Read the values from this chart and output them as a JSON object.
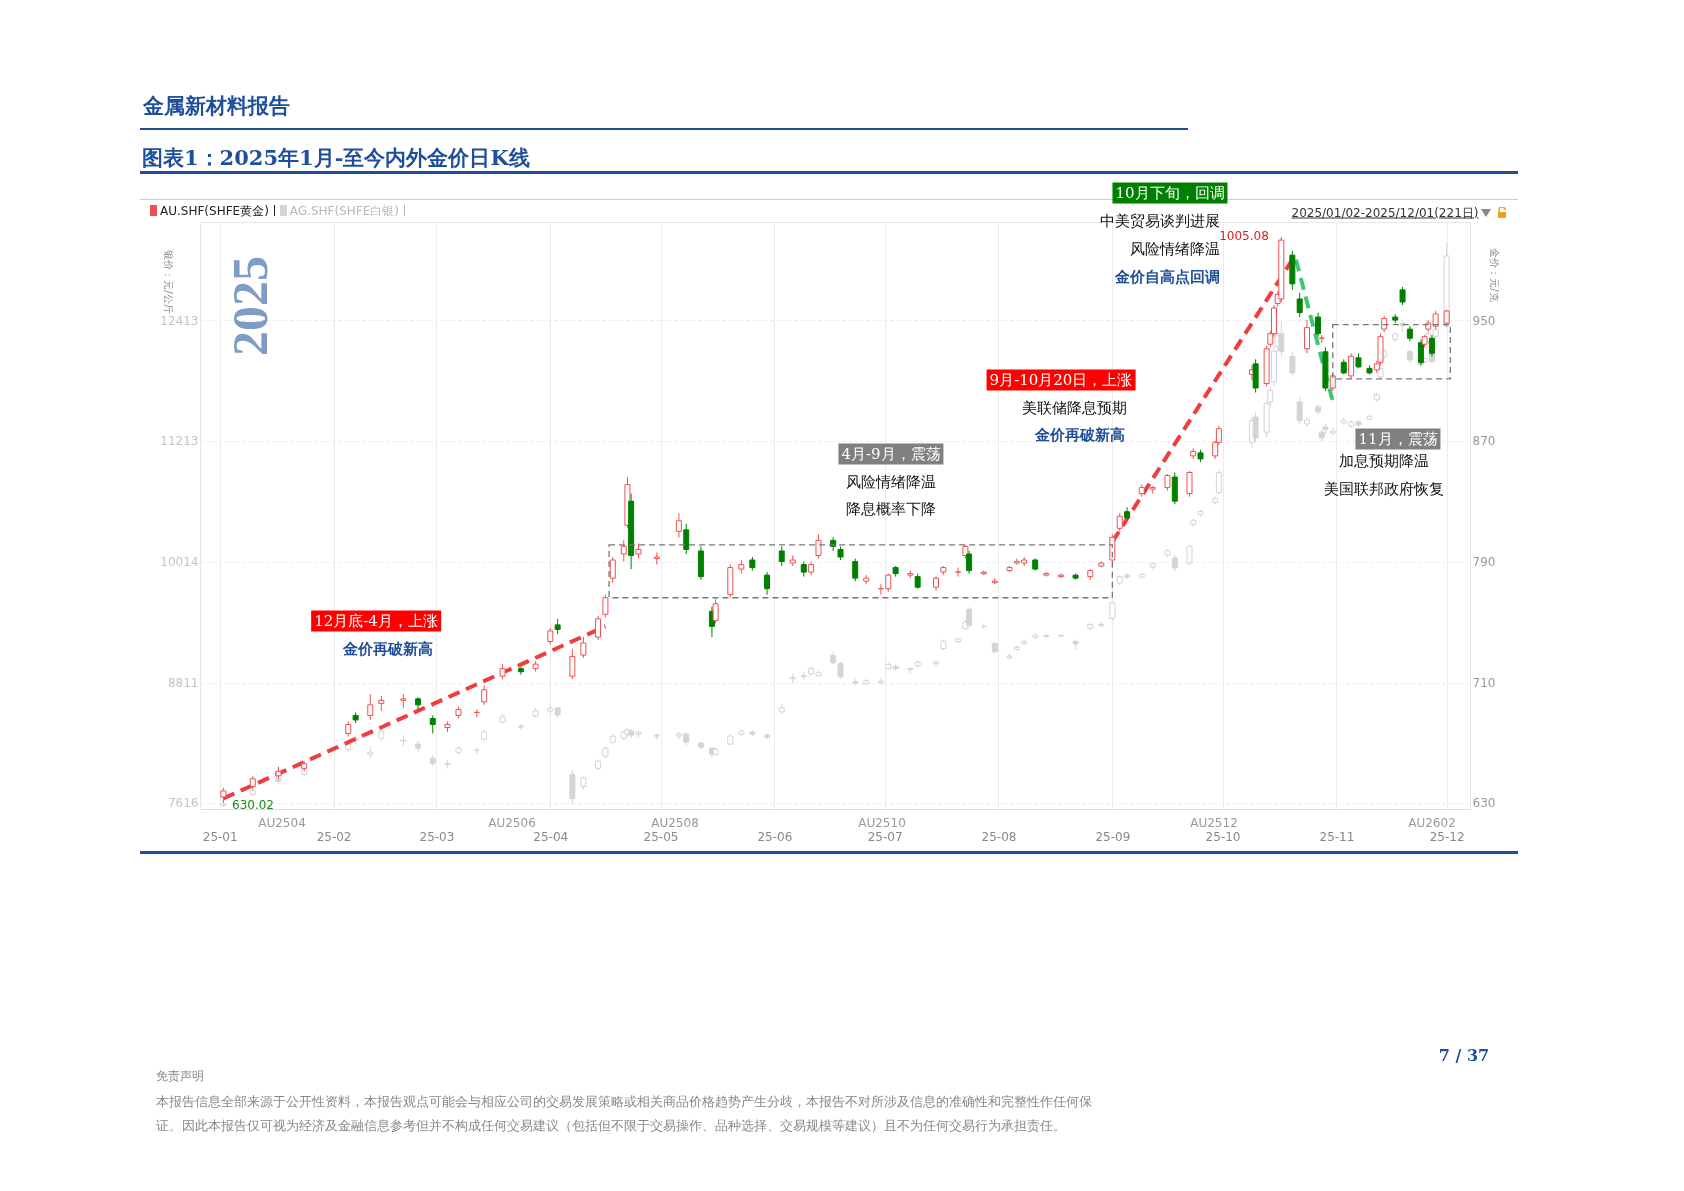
{
  "chart_data": {
    "type": "candlestick",
    "title": "图表1：2025年1月-至今内外金价日K线",
    "ylabel": "银价：元/公斤",
    "y2label": "金价：元/克",
    "x": [
      "2025-01-02",
      "2025-01-10",
      "2025-01-17",
      "2025-01-24",
      "2025-02-05",
      "2025-02-07",
      "2025-02-11",
      "2025-02-14",
      "2025-02-20",
      "2025-02-24",
      "2025-02-28",
      "2025-03-04",
      "2025-03-07",
      "2025-03-12",
      "2025-03-14",
      "2025-03-19",
      "2025-03-24",
      "2025-03-28",
      "2025-04-01",
      "2025-04-03",
      "2025-04-07",
      "2025-04-10",
      "2025-04-14",
      "2025-04-16",
      "2025-04-18",
      "2025-04-21",
      "2025-04-22",
      "2025-04-23",
      "2025-04-25",
      "2025-04-30",
      "2025-05-06",
      "2025-05-08",
      "2025-05-12",
      "2025-05-15",
      "2025-05-16",
      "2025-05-20",
      "2025-05-23",
      "2025-05-26",
      "2025-05-30",
      "2025-06-03",
      "2025-06-06",
      "2025-06-09",
      "2025-06-11",
      "2025-06-13",
      "2025-06-17",
      "2025-06-19",
      "2025-06-23",
      "2025-06-26",
      "2025-06-30",
      "2025-07-02",
      "2025-07-04",
      "2025-07-08",
      "2025-07-10",
      "2025-07-15",
      "2025-07-17",
      "2025-07-21",
      "2025-07-23",
      "2025-07-24",
      "2025-07-28",
      "2025-07-31",
      "2025-08-04",
      "2025-08-06",
      "2025-08-08",
      "2025-08-11",
      "2025-08-14",
      "2025-08-18",
      "2025-08-22",
      "2025-08-26",
      "2025-08-29",
      "2025-09-01",
      "2025-09-03",
      "2025-09-05",
      "2025-09-09",
      "2025-09-12",
      "2025-09-16",
      "2025-09-18",
      "2025-09-22",
      "2025-09-23",
      "2025-09-25",
      "2025-09-29",
      "2025-09-30",
      "2025-10-09",
      "2025-10-10",
      "2025-10-13",
      "2025-10-14",
      "2025-10-15",
      "2025-10-16",
      "2025-10-17",
      "2025-10-20",
      "2025-10-22",
      "2025-10-24",
      "2025-10-27",
      "2025-10-28",
      "2025-10-29",
      "2025-10-31",
      "2025-11-03",
      "2025-11-05",
      "2025-11-07",
      "2025-11-10",
      "2025-11-12",
      "2025-11-13",
      "2025-11-14",
      "2025-11-17",
      "2025-11-19",
      "2025-11-21",
      "2025-11-24",
      "2025-11-25",
      "2025-11-26",
      "2025-11-27",
      "2025-11-28",
      "2025-12-01"
    ],
    "series": [
      {
        "type": "line",
        "x": [
          "2025-01-02",
          "2025-04-16"
        ],
        "values": [
          633,
          747
        ],
        "color": "#f03c3c",
        "line_style": "dashed",
        "axis": "y2"
      },
      {
        "type": "line",
        "x": [
          "2025-09-01",
          "2025-10-20"
        ],
        "values": [
          803,
          990
        ],
        "color": "#f03c3c",
        "line_style": "dashed",
        "axis": "y2"
      },
      {
        "type": "line",
        "x": [
          "2025-10-21",
          "2025-10-31"
        ],
        "values": [
          990,
          896
        ],
        "color": "#3cc878",
        "line_style": "dashed",
        "axis": "y2"
      },
      {
        "name": "AG.SHF(SHFE白银)",
        "color": "#d4d4d4",
        "ohlc": [
          [
            7590,
            7612,
            7580,
            7605
          ],
          [
            7700,
            7760,
            7680,
            7740
          ],
          [
            7860,
            7880,
            7800,
            7830
          ],
          [
            7900,
            7990,
            7880,
            7950
          ],
          [
            8150,
            8230,
            8120,
            8200
          ],
          [
            8260,
            8290,
            8200,
            8240
          ],
          [
            8100,
            8180,
            8060,
            8120
          ],
          [
            8260,
            8360,
            8230,
            8330
          ],
          [
            8230,
            8290,
            8180,
            8240
          ],
          [
            8200,
            8230,
            8120,
            8160
          ],
          [
            8060,
            8090,
            7980,
            8010
          ],
          [
            8000,
            8040,
            7960,
            8010
          ],
          [
            8120,
            8180,
            8100,
            8160
          ],
          [
            8140,
            8170,
            8100,
            8140
          ],
          [
            8250,
            8340,
            8230,
            8320
          ],
          [
            8420,
            8500,
            8400,
            8470
          ],
          [
            8380,
            8400,
            8340,
            8370
          ],
          [
            8480,
            8560,
            8460,
            8530
          ],
          [
            8530,
            8590,
            8500,
            8555
          ],
          [
            8560,
            8570,
            8460,
            8490
          ],
          [
            7900,
            7950,
            7600,
            7660
          ],
          [
            7780,
            7880,
            7750,
            7866
          ],
          [
            7960,
            8050,
            7940,
            8030
          ],
          [
            8080,
            8170,
            8060,
            8160
          ],
          [
            8220,
            8300,
            8200,
            8280
          ],
          [
            8260,
            8330,
            8240,
            8320
          ],
          [
            8300,
            8360,
            8270,
            8340
          ],
          [
            8330,
            8350,
            8260,
            8290
          ],
          [
            8300,
            8330,
            8260,
            8320
          ],
          [
            8290,
            8310,
            8240,
            8280
          ],
          [
            8280,
            8320,
            8250,
            8300
          ],
          [
            8300,
            8320,
            8190,
            8220
          ],
          [
            8210,
            8230,
            8150,
            8170
          ],
          [
            8160,
            8170,
            8060,
            8100
          ],
          [
            8100,
            8170,
            8090,
            8150
          ],
          [
            8200,
            8300,
            8190,
            8280
          ],
          [
            8300,
            8350,
            8280,
            8330
          ],
          [
            8320,
            8340,
            8280,
            8300
          ],
          [
            8290,
            8310,
            8250,
            8270
          ],
          [
            8520,
            8600,
            8500,
            8560
          ],
          [
            8850,
            8900,
            8800,
            8860
          ],
          [
            8880,
            8920,
            8840,
            8870
          ],
          [
            8900,
            8970,
            8880,
            8950
          ],
          [
            8880,
            8930,
            8870,
            8910
          ],
          [
            9080,
            9120,
            8990,
            9010
          ],
          [
            9000,
            9020,
            8850,
            8870
          ],
          [
            8820,
            8850,
            8780,
            8805
          ],
          [
            8800,
            8850,
            8790,
            8830
          ],
          [
            8810,
            8860,
            8790,
            8826
          ],
          [
            8950,
            9010,
            8940,
            8993
          ],
          [
            8970,
            8990,
            8930,
            8950
          ],
          [
            8940,
            8960,
            8900,
            8951
          ],
          [
            8980,
            9030,
            8960,
            9014
          ],
          [
            9000,
            9040,
            8980,
            9020
          ],
          [
            9150,
            9240,
            9130,
            9222
          ],
          [
            9220,
            9260,
            9200,
            9243
          ],
          [
            9350,
            9430,
            9330,
            9410
          ],
          [
            9540,
            9560,
            9360,
            9380
          ],
          [
            9370,
            9400,
            9340,
            9368
          ],
          [
            9200,
            9210,
            9100,
            9118
          ],
          [
            9060,
            9100,
            9040,
            9076
          ],
          [
            9140,
            9180,
            9130,
            9160
          ],
          [
            9200,
            9240,
            9190,
            9218
          ],
          [
            9260,
            9300,
            9250,
            9282
          ],
          [
            9270,
            9290,
            9250,
            9280
          ],
          [
            9280,
            9290,
            9260,
            9275
          ],
          [
            9220,
            9240,
            9140,
            9196
          ],
          [
            9350,
            9400,
            9330,
            9390
          ],
          [
            9380,
            9410,
            9360,
            9390
          ],
          [
            9450,
            9620,
            9430,
            9605
          ],
          [
            9800,
            9880,
            9780,
            9864
          ],
          [
            9880,
            9900,
            9840,
            9860
          ],
          [
            9860,
            9900,
            9840,
            9885
          ],
          [
            9960,
            10010,
            9940,
            9993
          ],
          [
            10080,
            10140,
            10060,
            10122
          ],
          [
            10050,
            10080,
            9920,
            9950
          ],
          [
            10000,
            10180,
            9980,
            10165
          ],
          [
            10380,
            10440,
            10360,
            10424
          ],
          [
            10480,
            10530,
            10460,
            10510
          ],
          [
            10600,
            10660,
            10580,
            10639
          ],
          [
            10700,
            10920,
            10680,
            10897
          ],
          [
            11200,
            11450,
            11150,
            11414
          ],
          [
            11450,
            11500,
            11200,
            11242
          ],
          [
            11300,
            11600,
            11250,
            11586
          ],
          [
            11600,
            11750,
            11550,
            11715
          ],
          [
            11800,
            12150,
            11750,
            12103
          ],
          [
            12150,
            12300,
            12100,
            12275
          ],
          [
            12280,
            12400,
            12050,
            12103
          ],
          [
            12050,
            12100,
            11850,
            11887
          ],
          [
            11600,
            11650,
            11380,
            11414
          ],
          [
            11380,
            11450,
            11350,
            11420
          ],
          [
            11550,
            11580,
            11480,
            11500
          ],
          [
            11300,
            11320,
            11200,
            11242
          ],
          [
            11350,
            11380,
            11280,
            11328
          ],
          [
            11290,
            11340,
            11270,
            11310
          ],
          [
            11390,
            11440,
            11370,
            11414
          ],
          [
            11360,
            11420,
            11340,
            11400
          ],
          [
            11400,
            11420,
            11350,
            11371
          ],
          [
            11430,
            11480,
            11420,
            11457
          ],
          [
            11620,
            11690,
            11600,
            11672
          ],
          [
            11850,
            11950,
            11830,
            11931
          ],
          [
            12050,
            12130,
            12030,
            12103
          ],
          [
            12220,
            12290,
            12200,
            12275
          ],
          [
            12380,
            12400,
            12300,
            12361
          ],
          [
            12100,
            12120,
            11990,
            12017
          ],
          [
            12000,
            12020,
            11950,
            11974
          ],
          [
            12000,
            12050,
            11980,
            12030
          ],
          [
            12200,
            12290,
            12180,
            12275
          ],
          [
            12100,
            12120,
            11980,
            12000
          ],
          [
            12250,
            12330,
            12230,
            12318
          ],
          [
            12350,
            13180,
            12330,
            13050
          ]
        ]
      },
      {
        "name": "AU.SHF(SHFE黄金)",
        "axis": "y2",
        "ohlc": [
          [
            634,
            640,
            630.02,
            638
          ],
          [
            641,
            648,
            639,
            646
          ],
          [
            648,
            654,
            646,
            651
          ],
          [
            653,
            658,
            651,
            656
          ],
          [
            676,
            684,
            674,
            682
          ],
          [
            688,
            690,
            683,
            685
          ],
          [
            688,
            702,
            685,
            695
          ],
          [
            696,
            701,
            691,
            698
          ],
          [
            698,
            702,
            693,
            699
          ],
          [
            699,
            700,
            692,
            695
          ],
          [
            686,
            688,
            676,
            682
          ],
          [
            680,
            684,
            677,
            682
          ],
          [
            688,
            694,
            686,
            692
          ],
          [
            690,
            692,
            687,
            690
          ],
          [
            697,
            708,
            695,
            705
          ],
          [
            714,
            722,
            712,
            719
          ],
          [
            719,
            720,
            715,
            717
          ],
          [
            719,
            724,
            717,
            722
          ],
          [
            737,
            746,
            735,
            744
          ],
          [
            748,
            752,
            742,
            745
          ],
          [
            714,
            732,
            712,
            727
          ],
          [
            728,
            740,
            726,
            736
          ],
          [
            740,
            754,
            738,
            752
          ],
          [
            755,
            768,
            753,
            766
          ],
          [
            779,
            793,
            776,
            791
          ],
          [
            795,
            804,
            790,
            800
          ],
          [
            814,
            846,
            812,
            841
          ],
          [
            830,
            835,
            785,
            794
          ],
          [
            795,
            802,
            792,
            798
          ],
          [
            792,
            796,
            788,
            793
          ],
          [
            810,
            822,
            806,
            817
          ],
          [
            811,
            815,
            795,
            798
          ],
          [
            797,
            800,
            778,
            780
          ],
          [
            757,
            760,
            740,
            747
          ],
          [
            751,
            765,
            749,
            762
          ],
          [
            768,
            788,
            766,
            786
          ],
          [
            785,
            791,
            782,
            788
          ],
          [
            791,
            793,
            784,
            786
          ],
          [
            781,
            783,
            768,
            772
          ],
          [
            797,
            800,
            787,
            790
          ],
          [
            789,
            794,
            787,
            791
          ],
          [
            788,
            790,
            780,
            783
          ],
          [
            783,
            790,
            781,
            788
          ],
          [
            794,
            808,
            792,
            804
          ],
          [
            804,
            806,
            797,
            800
          ],
          [
            798,
            800,
            791,
            793
          ],
          [
            790,
            792,
            777,
            779
          ],
          [
            777,
            781,
            775,
            779
          ],
          [
            772,
            775,
            768,
            772
          ],
          [
            772,
            782,
            770,
            781
          ],
          [
            786,
            787,
            780,
            782
          ],
          [
            781,
            784,
            779,
            782
          ],
          [
            780,
            782,
            772,
            773
          ],
          [
            773,
            780,
            771,
            779
          ],
          [
            783,
            787,
            781,
            786
          ],
          [
            783,
            786,
            780,
            783
          ],
          [
            794,
            801,
            792,
            800
          ],
          [
            795,
            797,
            782,
            784
          ],
          [
            782,
            784,
            781,
            783
          ],
          [
            776,
            779,
            775,
            777
          ],
          [
            784,
            787,
            783,
            786
          ],
          [
            789,
            792,
            788,
            790
          ],
          [
            789,
            793,
            787,
            791
          ],
          [
            791,
            792,
            784,
            785
          ],
          [
            781,
            783,
            780,
            782
          ],
          [
            780,
            782,
            779,
            781
          ],
          [
            781,
            782,
            778,
            779
          ],
          [
            780,
            785,
            778,
            784
          ],
          [
            787,
            790,
            786,
            789
          ],
          [
            791,
            808,
            789,
            806
          ],
          [
            812,
            822,
            810,
            820
          ],
          [
            823,
            826,
            818,
            819
          ],
          [
            835,
            841,
            833,
            839
          ],
          [
            838,
            840,
            835,
            839
          ],
          [
            839,
            848,
            837,
            847
          ],
          [
            846,
            849,
            828,
            830
          ],
          [
            835,
            850,
            833,
            849
          ],
          [
            860,
            865,
            858,
            863
          ],
          [
            862,
            864,
            856,
            858
          ],
          [
            860,
            870,
            858,
            869
          ],
          [
            869,
            880,
            867,
            878
          ],
          [
            914,
            920,
            910,
            917
          ],
          [
            921,
            924,
            902,
            905
          ],
          [
            908,
            933,
            906,
            931
          ],
          [
            934,
            943,
            932,
            941
          ],
          [
            941,
            960,
            939,
            958
          ],
          [
            961,
            969,
            959,
            967
          ],
          [
            964,
            1005.08,
            962,
            1003
          ],
          [
            993,
            996,
            970,
            974
          ],
          [
            964,
            968,
            952,
            955
          ],
          [
            931,
            950,
            928,
            945
          ],
          [
            952,
            955,
            939,
            941
          ],
          [
            938,
            940,
            935,
            938
          ],
          [
            929,
            932,
            903,
            905
          ],
          [
            905,
            915,
            903,
            913
          ],
          [
            922,
            924,
            914,
            915
          ],
          [
            913,
            928,
            911,
            926
          ],
          [
            925,
            928,
            918,
            919
          ],
          [
            918,
            920,
            914,
            915
          ],
          [
            917,
            923,
            915,
            921
          ],
          [
            922,
            941,
            920,
            939
          ],
          [
            944,
            953,
            942,
            951
          ],
          [
            952,
            954,
            948,
            950
          ],
          [
            970,
            972,
            960,
            962
          ],
          [
            944,
            946,
            936,
            938
          ],
          [
            935,
            937,
            920,
            922
          ],
          [
            934,
            940,
            932,
            939
          ],
          [
            944,
            950,
            942,
            948
          ],
          [
            938,
            940,
            926,
            928
          ],
          [
            946,
            956,
            944,
            954
          ],
          [
            948,
            957,
            946,
            956
          ]
        ]
      }
    ],
    "xlim": [
      "2024-12-28",
      "2025-12-06"
    ],
    "xticks": [
      {
        "value": "2025-01-01",
        "label": "25-01"
      },
      {
        "value": "2025-02-01",
        "label": "25-02"
      },
      {
        "value": "2025-03-01",
        "label": "25-03"
      },
      {
        "value": "2025-04-01",
        "label": "25-04"
      },
      {
        "value": "2025-05-01",
        "label": "25-05"
      },
      {
        "value": "2025-06-01",
        "label": "25-06"
      },
      {
        "value": "2025-07-01",
        "label": "25-07"
      },
      {
        "value": "2025-08-01",
        "label": "25-08"
      },
      {
        "value": "2025-09-01",
        "label": "25-09"
      },
      {
        "value": "2025-10-01",
        "label": "25-10"
      },
      {
        "value": "2025-11-01",
        "label": "25-11"
      },
      {
        "value": "2025-12-01",
        "label": "25-12"
      }
    ],
    "ylim": [
      7556,
      13387
    ],
    "yticks": [
      7616,
      8811,
      10014,
      11213,
      12413
    ],
    "y2lim": [
      626,
      1015
    ],
    "y2ticks": [
      630,
      710,
      790,
      870,
      950
    ],
    "grid": true,
    "legend": "top left",
    "annotations": [
      "12月底-4月，上涨",
      "金价再破新高",
      "4月-9月，震荡",
      "风险情绪降温",
      "降息概率下降",
      "9月-10月20日，上涨",
      "美联储降息预期",
      "金价再破新高",
      "10月下旬，回调",
      "中美贸易谈判进展",
      "风险情绪降温",
      "金价自高点回调",
      "11月，震荡",
      "加息预期降温",
      "美国联邦政府恢复",
      "2025",
      "2025/01/02-2025/12/01(221日)",
      "AU2504",
      "AU2506",
      "AU2508",
      "AU2510",
      "AU2512",
      "AU2602",
      "金属新材料报告",
      "7 / 37",
      "免责声明",
      "本报告信息全部来源于公开性资料，本报告观点可能会与相应公司的交易发展策略或相关商品价格趋势产生分歧，本报告不对所涉及信息的准确性和完整性作任何保证。因此本报告仅可视为经济及金融信息参考但并不构成任何交易建议（包括但不限于交易操作、品种选择、交易规模等建议）且不为任何交易行为承担责任。",
      "1005.08",
      "630.02"
    ]
  }
}
